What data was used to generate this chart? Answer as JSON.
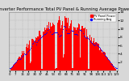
{
  "title": "Solar PV/Inverter Performance Total PV Panel & Running Average Power Output",
  "title_fontsize": 3.8,
  "ylabel_fontsize": 3.5,
  "ylim": [
    0,
    14
  ],
  "yticks": [
    2,
    4,
    6,
    8,
    10,
    12,
    14
  ],
  "ytick_labels": [
    "2",
    "4",
    "6",
    "8",
    "10",
    "12",
    "14"
  ],
  "ytick_fontsize": 3.2,
  "xtick_fontsize": 2.8,
  "background_color": "#d8d8d8",
  "plot_bg_color": "#d8d8d8",
  "bar_color": "#ff0000",
  "avg_color": "#0000ff",
  "grid_color": "#aaaaaa",
  "legend_labels": [
    "PV Panel Power",
    "Running Avg"
  ],
  "legend_colors": [
    "#ff0000",
    "#0000ff"
  ],
  "n_bars": 130
}
